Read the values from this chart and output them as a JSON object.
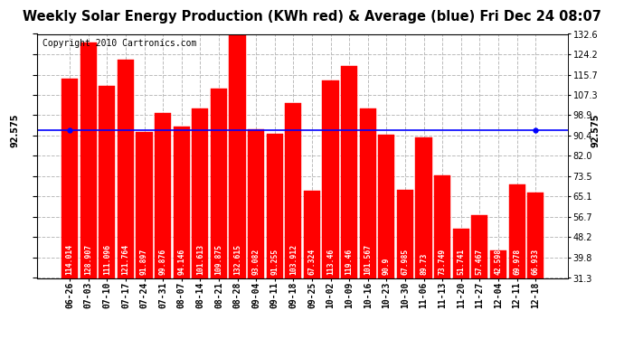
{
  "title": "Weekly Solar Energy Production (KWh red) & Average (blue) Fri Dec 24 08:07",
  "copyright": "Copyright 2010 Cartronics.com",
  "categories": [
    "06-26",
    "07-03",
    "07-10",
    "07-17",
    "07-24",
    "07-31",
    "08-07",
    "08-14",
    "08-21",
    "08-28",
    "09-04",
    "09-11",
    "09-18",
    "09-25",
    "10-02",
    "10-09",
    "10-16",
    "10-23",
    "10-30",
    "11-06",
    "11-13",
    "11-20",
    "11-27",
    "12-04",
    "12-11",
    "12-18"
  ],
  "values": [
    114.014,
    128.907,
    111.096,
    121.764,
    91.897,
    99.876,
    94.146,
    101.613,
    109.875,
    132.615,
    93.082,
    91.255,
    103.912,
    67.324,
    113.46,
    119.46,
    101.567,
    90.9,
    67.985,
    89.73,
    73.749,
    51.741,
    57.467,
    42.598,
    69.978,
    66.933
  ],
  "average": 92.575,
  "bar_color": "#FF0000",
  "avg_line_color": "#0000FF",
  "background_color": "#FFFFFF",
  "plot_bg_color": "#FFFFFF",
  "grid_color": "#BBBBBB",
  "yticks": [
    31.3,
    39.8,
    48.2,
    56.7,
    65.1,
    73.5,
    82.0,
    90.4,
    98.9,
    107.3,
    115.7,
    124.2,
    132.6
  ],
  "ylim_min": 31.3,
  "ylim_max": 132.6,
  "avg_label": "92.575",
  "title_fontsize": 10.5,
  "copyright_fontsize": 7,
  "bar_label_fontsize": 5.8,
  "tick_fontsize": 7,
  "avg_text_fontsize": 7
}
